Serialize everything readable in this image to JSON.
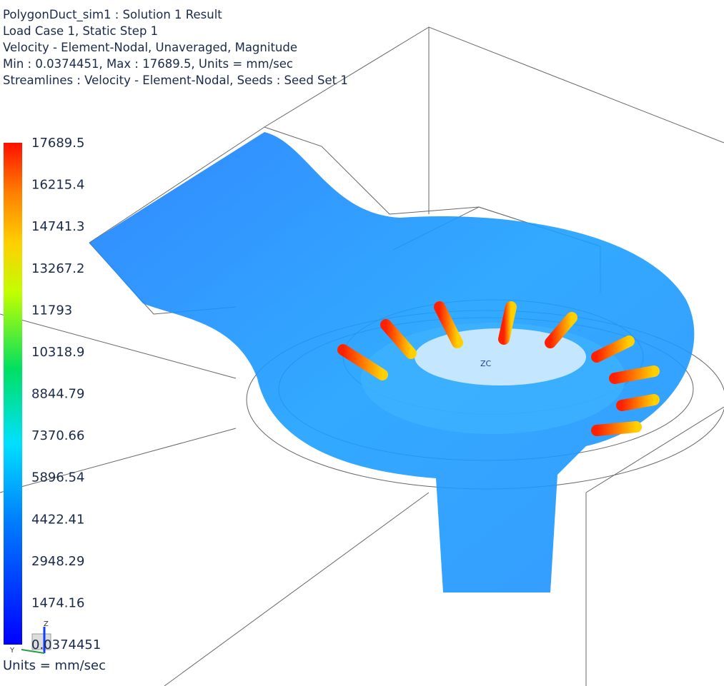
{
  "header": {
    "lines": [
      "PolygonDuct_sim1 : Solution 1 Result",
      "Load Case 1, Static Step 1",
      "Velocity - Element-Nodal, Unaveraged, Magnitude",
      "Min : 0.0374451, Max : 17689.5, Units = mm/sec",
      "Streamlines : Velocity - Element-Nodal, Seeds : Seed Set 1"
    ]
  },
  "legend": {
    "labels": [
      "17689.5",
      "16215.4",
      "14741.3",
      "13267.2",
      "11793",
      "10318.9",
      "8844.79",
      "7370.66",
      "5896.54",
      "4422.41",
      "2948.29",
      "1474.16",
      "0.0374451"
    ],
    "units": "Units = mm/sec"
  },
  "viewport": {
    "center_label": "ZC",
    "triad": {
      "z": "Z",
      "y": "Y"
    }
  }
}
